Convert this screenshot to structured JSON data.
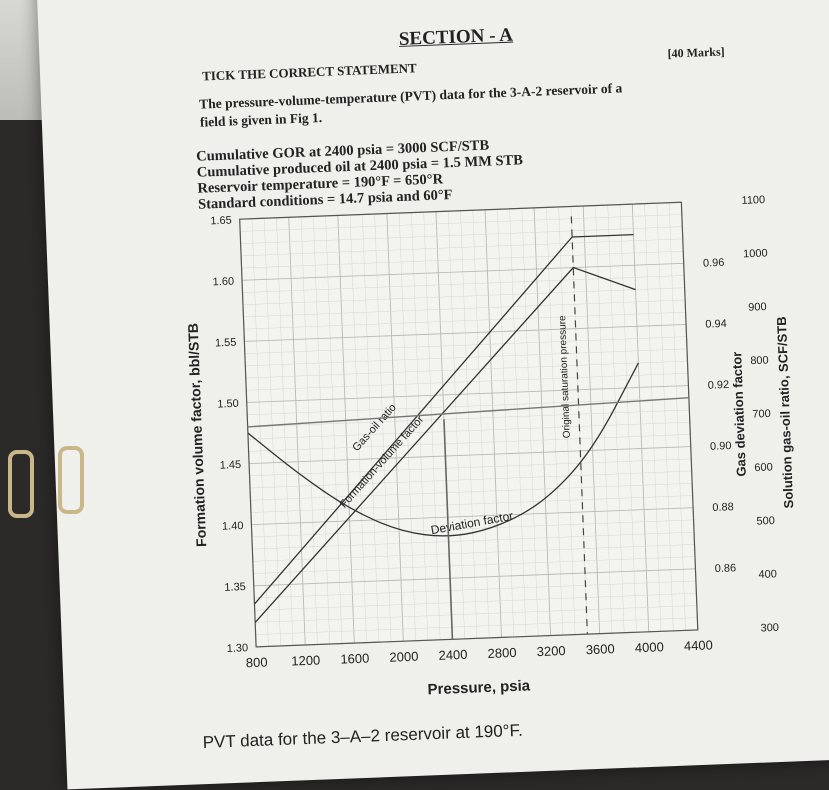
{
  "header": {
    "section": "SECTION - A",
    "instruction": "TICK THE CORRECT STATEMENT",
    "marks": "[40 Marks]"
  },
  "intro": {
    "line1": "The pressure-volume-temperature (PVT) data for the 3-A-2 reservoir of a",
    "line2": "field is given in Fig 1."
  },
  "given": [
    "Cumulative GOR at 2400 psia = 3000 SCF/STB",
    "Cumulative produced oil at 2400 psia = 1.5 MM STB",
    "Reservoir temperature = 190°F = 650°R",
    "Standard conditions = 14.7 psia and 60°F"
  ],
  "caption": "PVT data for the 3–A–2 reservoir at 190°F.",
  "chart_data": {
    "type": "line",
    "xlabel": "Pressure, psia",
    "ylabel_left": "Formation volume factor, bbl/STB",
    "ylabel_right1": "Gas deviation factor",
    "ylabel_right2": "Solution gas-oil ratio, SCF/STB",
    "x_ticks": [
      "800",
      "1200",
      "1600",
      "2000",
      "2400",
      "2800",
      "3200",
      "3600",
      "4000",
      "4400"
    ],
    "xlim": [
      800,
      4400
    ],
    "y_left_ticks": [
      "1.30",
      "1.35",
      "1.40",
      "1.45",
      "1.50",
      "1.55",
      "1.60",
      "1.65"
    ],
    "ylim_left": [
      1.3,
      1.65
    ],
    "y_z_ticks": [
      "0.86",
      "0.88",
      "0.90",
      "0.92",
      "0.94",
      "0.96"
    ],
    "ylim_z": [
      0.84,
      0.98
    ],
    "y_rs_ticks": [
      "300",
      "400",
      "500",
      "600",
      "700",
      "800",
      "900",
      "1000",
      "1100"
    ],
    "ylim_rs": [
      300,
      1100
    ],
    "saturation_pressure": 3500,
    "saturation_label": "Original saturation pressure",
    "series": [
      {
        "name": "Formation-volume factor",
        "x": [
          800,
          3500,
          4000
        ],
        "y": [
          1.32,
          1.6,
          1.58
        ]
      },
      {
        "name": "Gas-oil ratio",
        "x": [
          800,
          3500,
          4000
        ],
        "y": [
          1.335,
          1.625,
          1.625
        ]
      },
      {
        "name": "Deviation factor",
        "x": [
          800,
          1200,
          1600,
          2000,
          2400,
          2800,
          3200,
          3600,
          4000
        ],
        "y": [
          1.475,
          1.44,
          1.41,
          1.39,
          1.383,
          1.39,
          1.41,
          1.45,
          1.52
        ]
      }
    ],
    "grid": true
  }
}
